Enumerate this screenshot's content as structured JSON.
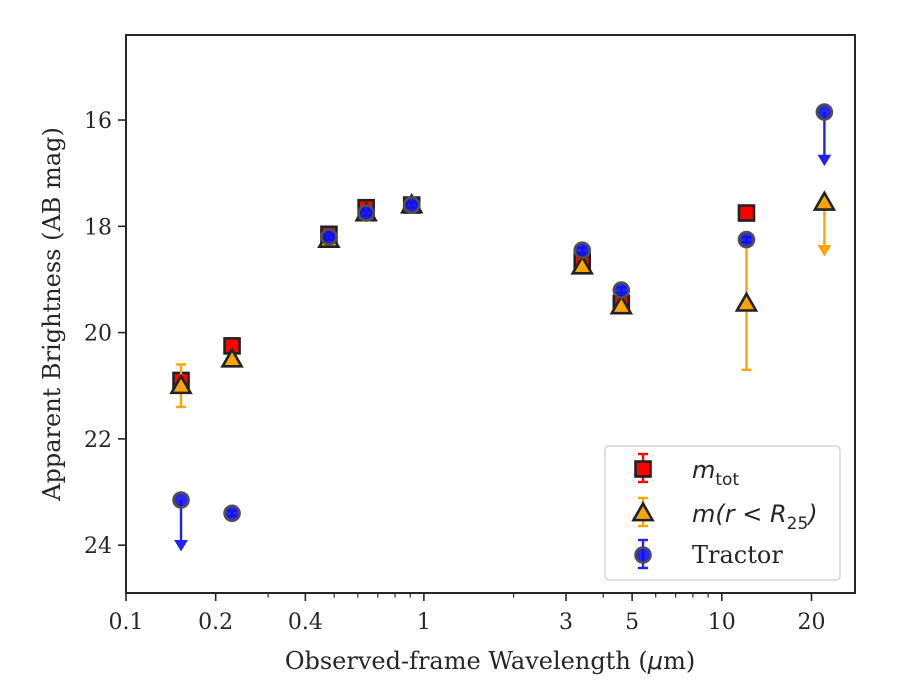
{
  "chart_data": {
    "type": "scatter",
    "x_scale": "log",
    "xlim": [
      0.1,
      28
    ],
    "ylim": [
      14.4,
      24.9
    ],
    "y_inverted": true,
    "xlabel_text": "Observed-frame Wavelength (",
    "xlabel_mu": "μ",
    "xlabel_tail": "m)",
    "ylabel": "Apparent Brightness (AB mag)",
    "x_ticks": [
      0.1,
      0.2,
      0.4,
      1,
      3,
      5,
      10,
      20
    ],
    "x_tick_labels": [
      "0.1",
      "0.2",
      "0.4",
      "1",
      "3",
      "5",
      "10",
      "20"
    ],
    "y_ticks": [
      16,
      18,
      20,
      22,
      24
    ],
    "y_tick_labels": [
      "16",
      "18",
      "20",
      "22",
      "24"
    ],
    "legend_placement": "lower-right",
    "series": [
      {
        "key": "mtot",
        "name_main": "m",
        "name_sub": "tot",
        "marker": "square",
        "face": "#ff0000",
        "edge": "#222222",
        "errcolor": "#ff0000",
        "points": [
          {
            "x": 0.153,
            "y": 20.9,
            "err": 0.1
          },
          {
            "x": 0.227,
            "y": 20.25,
            "err": 0.05
          },
          {
            "x": 0.48,
            "y": 18.15,
            "err": 0.05
          },
          {
            "x": 0.64,
            "y": 17.65,
            "err": 0.05
          },
          {
            "x": 0.91,
            "y": 17.6,
            "err": 0.05
          },
          {
            "x": 3.4,
            "y": 18.65,
            "err": 0.05
          },
          {
            "x": 4.6,
            "y": 19.45,
            "err": 0.05
          },
          {
            "x": 12.1,
            "y": 17.75,
            "err": 0.05
          }
        ]
      },
      {
        "key": "mr25",
        "name_main": "m(r < R",
        "name_sub": "25",
        "name_tail": ")",
        "marker": "triangle",
        "face": "#ffa500",
        "edge": "#222222",
        "errcolor": "#ffa500",
        "points": [
          {
            "x": 0.153,
            "y": 21.0,
            "err": 0.4
          },
          {
            "x": 0.227,
            "y": 20.5,
            "err": 0.05
          },
          {
            "x": 0.48,
            "y": 18.25,
            "err": 0.05
          },
          {
            "x": 0.64,
            "y": 17.75,
            "err": 0.05
          },
          {
            "x": 0.91,
            "y": 17.6,
            "err": 0.05
          },
          {
            "x": 3.4,
            "y": 18.75,
            "err": 0.05
          },
          {
            "x": 4.6,
            "y": 19.5,
            "err": 0.05
          },
          {
            "x": 12.1,
            "y": 19.45,
            "err": 1.25
          },
          {
            "x": 22.1,
            "y": 17.55,
            "upper_limit": true,
            "arrow_to": 18.55
          }
        ]
      },
      {
        "key": "tractor",
        "name_main": "Tractor",
        "marker": "circle",
        "face": "#1010ee",
        "edge": "#505050",
        "errcolor": "#2222ee",
        "points": [
          {
            "x": 0.153,
            "y": 23.15,
            "upper_limit": true,
            "arrow_to": 24.1
          },
          {
            "x": 0.227,
            "y": 23.4,
            "err": 0.05
          },
          {
            "x": 0.48,
            "y": 18.2,
            "err": 0.05
          },
          {
            "x": 0.64,
            "y": 17.75,
            "err": 0.05
          },
          {
            "x": 0.91,
            "y": 17.6,
            "err": 0.05
          },
          {
            "x": 3.4,
            "y": 18.45,
            "err": 0.05
          },
          {
            "x": 4.6,
            "y": 19.2,
            "err": 0.05
          },
          {
            "x": 12.1,
            "y": 18.25,
            "err": 0.05
          },
          {
            "x": 22.1,
            "y": 15.85,
            "upper_limit": true,
            "arrow_to": 16.85
          }
        ]
      }
    ]
  }
}
